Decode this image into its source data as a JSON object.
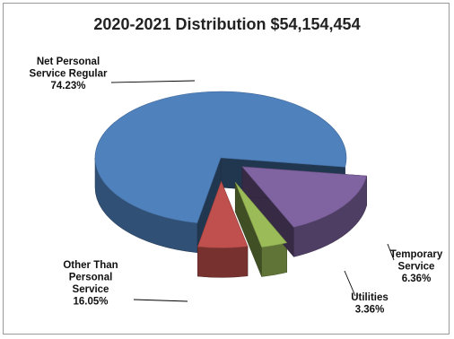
{
  "chart_data": {
    "type": "pie",
    "title": "2020-2021 Distribution $54,154,454",
    "slices": [
      {
        "label_lines": [
          "Net Personal",
          "Service Regular"
        ],
        "value_text": "74.23%",
        "value": 74.23,
        "color": "#4f81bd",
        "exploded": false
      },
      {
        "label_lines": [
          "Temporary",
          "Service"
        ],
        "value_text": "6.36%",
        "value": 6.36,
        "color": "#c0504d",
        "exploded": true
      },
      {
        "label_lines": [
          "Utilities"
        ],
        "value_text": "3.36%",
        "value": 3.36,
        "color": "#9bbb59",
        "exploded": true
      },
      {
        "label_lines": [
          "Other Than",
          "Personal",
          "Service"
        ],
        "value_text": "16.05%",
        "value": 16.05,
        "color": "#8064a2",
        "exploded": true
      }
    ]
  }
}
